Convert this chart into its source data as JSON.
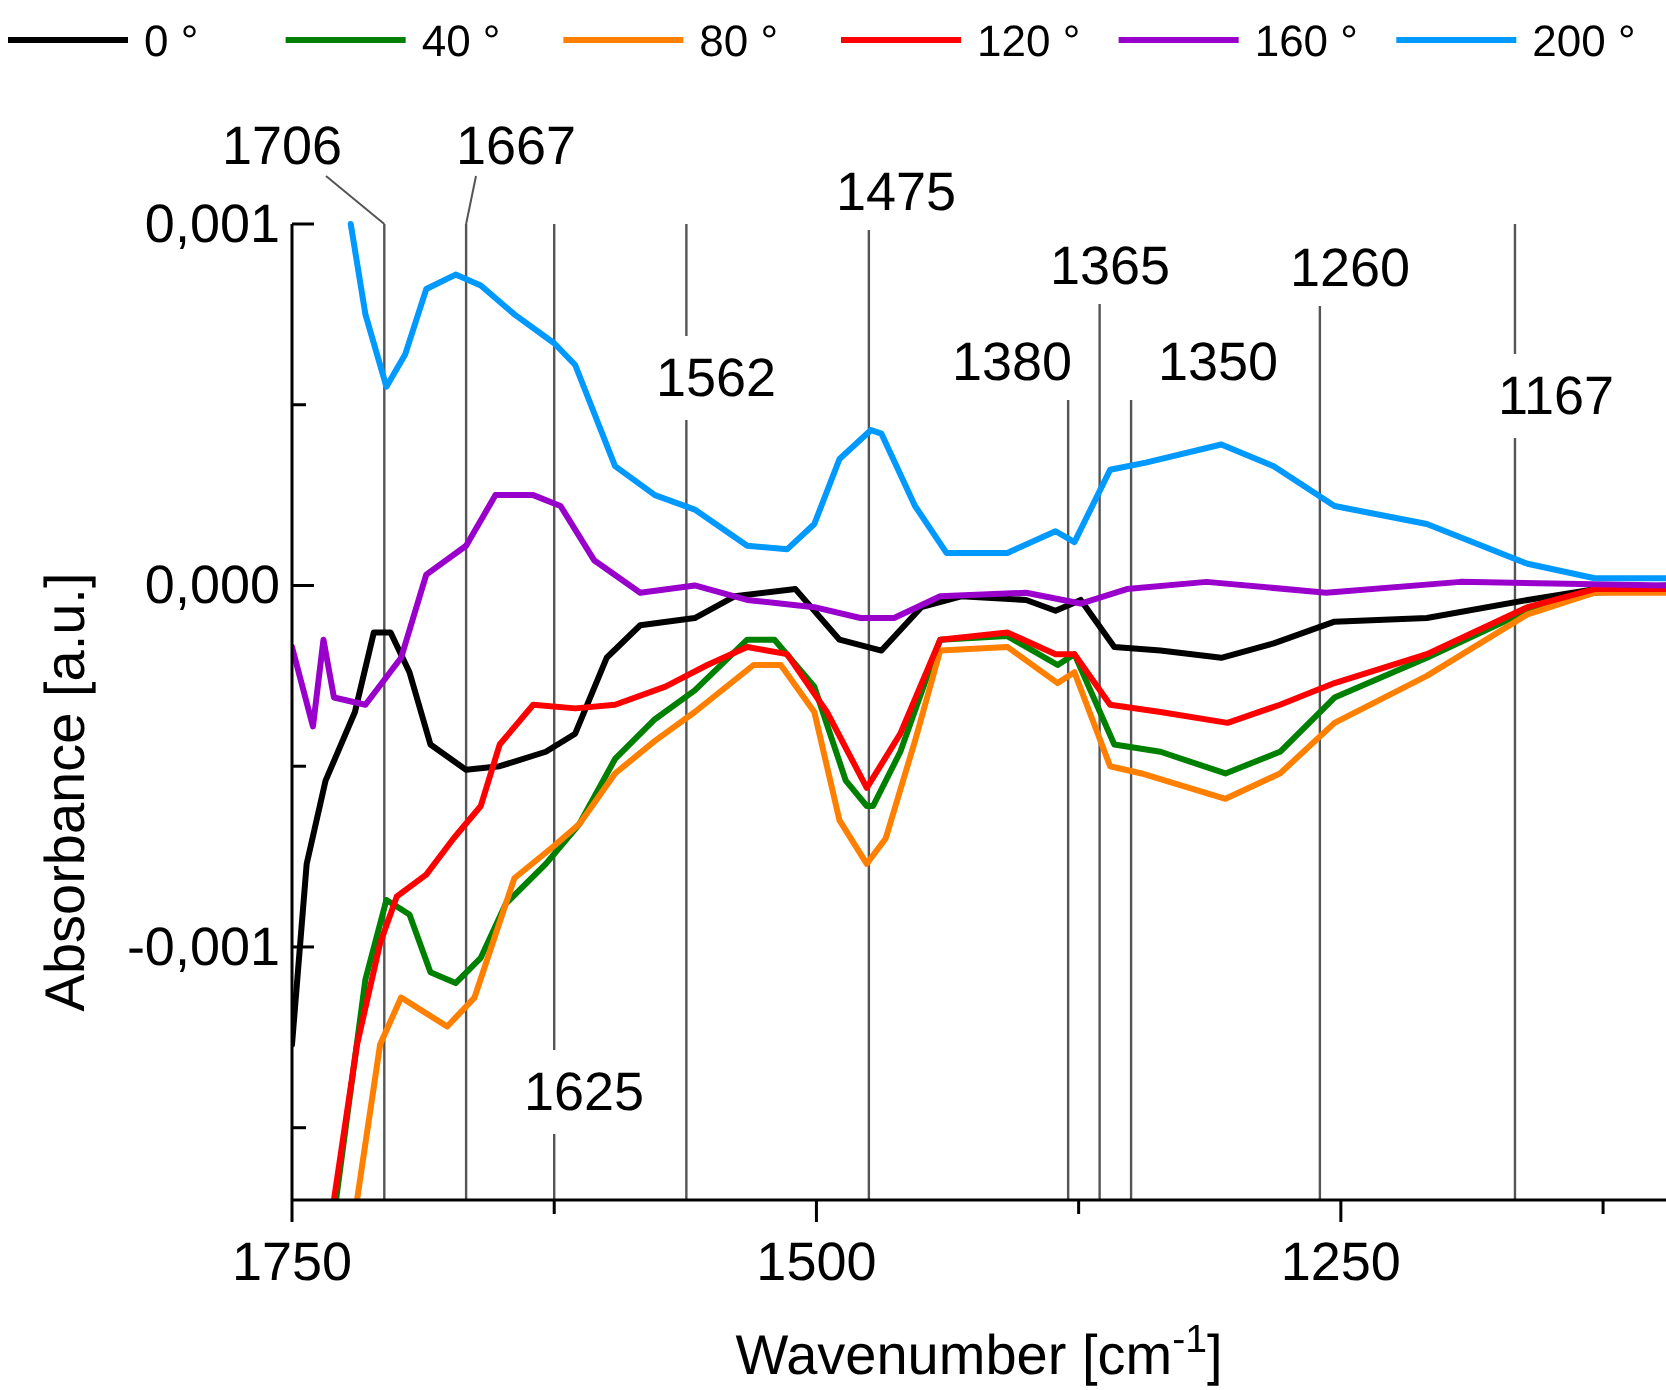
{
  "chart_data": {
    "type": "line",
    "xlabel": "Wavenumber [cm$^{-1}$]",
    "ylabel": "Absorbance [a.u.]",
    "xlim": [
      1750,
      1095
    ],
    "ylim": [
      -0.0017,
      0.001
    ],
    "xticks": [
      1750,
      {
        "value": 1625,
        "label": null
      },
      1500,
      {
        "value": 1375,
        "label": null
      },
      1250,
      {
        "value": 1125,
        "label": null
      }
    ],
    "yticks": [
      {
        "value": -0.0015,
        "label": null
      },
      {
        "value": -0.001,
        "label": "-0,001"
      },
      {
        "value": -0.0005,
        "label": null
      },
      {
        "value": 0,
        "label": "0,000"
      },
      {
        "value": 0.0005,
        "label": null
      },
      {
        "value": 0.001,
        "label": "0,001"
      }
    ],
    "legend": "top",
    "grid": false,
    "marker": "none",
    "line_style": "solid",
    "ref_lines": [
      {
        "axis": "x",
        "value": 1706,
        "label": "1706",
        "color": "#555555"
      },
      {
        "axis": "x",
        "value": 1667,
        "label": "1667",
        "color": "#555555"
      },
      {
        "axis": "x",
        "value": 1625,
        "label": "1625",
        "color": "#555555"
      },
      {
        "axis": "x",
        "value": 1562,
        "label": "1562",
        "color": "#555555"
      },
      {
        "axis": "x",
        "value": 1475,
        "label": "1475",
        "color": "#555555"
      },
      {
        "axis": "x",
        "value": 1380,
        "label": "1380",
        "color": "#555555"
      },
      {
        "axis": "x",
        "value": 1365,
        "label": "1365",
        "color": "#555555"
      },
      {
        "axis": "x",
        "value": 1350,
        "label": "1350",
        "color": "#555555"
      },
      {
        "axis": "x",
        "value": 1260,
        "label": "1260",
        "color": "#555555"
      },
      {
        "axis": "x",
        "value": 1167,
        "label": "1167",
        "color": "#555555"
      }
    ],
    "series": [
      {
        "name": "0 °",
        "color": "#000000",
        "x": [
          1750,
          1743,
          1734,
          1720,
          1711,
          1703,
          1694,
          1684,
          1667,
          1651,
          1629,
          1615,
          1600,
          1584,
          1558,
          1539,
          1510,
          1489,
          1469,
          1450,
          1431,
          1400,
          1386,
          1374,
          1358,
          1336,
          1307,
          1282,
          1253,
          1209,
          1161,
          1129,
          1095
        ],
        "values": [
          -0.00127,
          -0.00077,
          -0.00054,
          -0.00035,
          -0.00013,
          -0.00013,
          -0.00024,
          -0.00044,
          -0.00051,
          -0.0005,
          -0.00046,
          -0.00041,
          -0.0002,
          -0.00011,
          -9e-05,
          -3e-05,
          -1e-05,
          -0.00015,
          -0.00018,
          -6e-05,
          -3e-05,
          -4e-05,
          -7e-05,
          -4e-05,
          -0.00017,
          -0.00018,
          -0.0002,
          -0.00016,
          -0.0001,
          -9e-05,
          -4e-05,
          -1e-05,
          0
        ]
      },
      {
        "name": "40 °",
        "color": "#008000",
        "x": [
          1729,
          1715,
          1705,
          1694,
          1684,
          1672,
          1660,
          1648,
          1629,
          1613,
          1596,
          1577,
          1558,
          1533,
          1520,
          1501,
          1486,
          1476,
          1473,
          1460,
          1441,
          1409,
          1385,
          1377,
          1358,
          1336,
          1305,
          1279,
          1253,
          1209,
          1161,
          1129,
          1095
        ],
        "values": [
          -0.0017,
          -0.00109,
          -0.00087,
          -0.00091,
          -0.00107,
          -0.0011,
          -0.00103,
          -0.00088,
          -0.00077,
          -0.00066,
          -0.00048,
          -0.00037,
          -0.00029,
          -0.00015,
          -0.00015,
          -0.00028,
          -0.00054,
          -0.00061,
          -0.00061,
          -0.00046,
          -0.00015,
          -0.00014,
          -0.00022,
          -0.00019,
          -0.00044,
          -0.00046,
          -0.00052,
          -0.00046,
          -0.00031,
          -0.0002,
          -7e-05,
          -2e-05,
          -1e-05
        ]
      },
      {
        "name": "80 °",
        "color": "#ff8000",
        "x": [
          1719,
          1708,
          1698,
          1676,
          1663,
          1644,
          1625,
          1613,
          1596,
          1577,
          1558,
          1530,
          1517,
          1501,
          1489,
          1476,
          1467,
          1453,
          1441,
          1409,
          1385,
          1377,
          1360,
          1345,
          1305,
          1279,
          1253,
          1209,
          1161,
          1129,
          1095
        ],
        "values": [
          -0.0017,
          -0.00127,
          -0.00114,
          -0.00122,
          -0.00114,
          -0.00081,
          -0.00072,
          -0.00066,
          -0.00052,
          -0.00043,
          -0.00035,
          -0.00022,
          -0.00022,
          -0.00035,
          -0.00065,
          -0.00077,
          -0.0007,
          -0.00043,
          -0.00018,
          -0.00017,
          -0.00027,
          -0.00024,
          -0.0005,
          -0.00052,
          -0.00059,
          -0.00052,
          -0.00038,
          -0.00025,
          -8e-05,
          -2e-05,
          -2e-05
        ]
      },
      {
        "name": "120 °",
        "color": "#ff0000",
        "x": [
          1730,
          1719,
          1708,
          1700,
          1686,
          1673,
          1660,
          1651,
          1635,
          1615,
          1596,
          1572,
          1552,
          1533,
          1514,
          1495,
          1476,
          1460,
          1441,
          1409,
          1386,
          1377,
          1360,
          1336,
          1304,
          1279,
          1253,
          1209,
          1161,
          1129,
          1095
        ],
        "values": [
          -0.0017,
          -0.00127,
          -0.00099,
          -0.00086,
          -0.0008,
          -0.0007,
          -0.00061,
          -0.00044,
          -0.00033,
          -0.00034,
          -0.00033,
          -0.00028,
          -0.00022,
          -0.00017,
          -0.00019,
          -0.00035,
          -0.00056,
          -0.00041,
          -0.00015,
          -0.00013,
          -0.00019,
          -0.00019,
          -0.00033,
          -0.00035,
          -0.00038,
          -0.00033,
          -0.00027,
          -0.00019,
          -6e-05,
          -1e-05,
          -1e-05
        ]
      },
      {
        "name": "160 °",
        "color": "#9900cc",
        "x": [
          1750,
          1740,
          1735,
          1730,
          1715,
          1698,
          1686,
          1667,
          1653,
          1635,
          1622,
          1606,
          1584,
          1558,
          1533,
          1501,
          1479,
          1463,
          1441,
          1400,
          1374,
          1352,
          1314,
          1257,
          1193,
          1095
        ],
        "values": [
          -0.00017,
          -0.00039,
          -0.00015,
          -0.00031,
          -0.00033,
          -0.0002,
          3e-05,
          0.00011,
          0.00025,
          0.00025,
          0.00022,
          7e-05,
          -2e-05,
          0,
          -4e-05,
          -6e-05,
          -9e-05,
          -9e-05,
          -3e-05,
          -2e-05,
          -5e-05,
          -1e-05,
          1e-05,
          -2e-05,
          1e-05,
          0
        ]
      },
      {
        "name": "200 °",
        "color": "#0099ff",
        "x": [
          1722,
          1715,
          1705,
          1696,
          1686,
          1672,
          1660,
          1644,
          1625,
          1615,
          1596,
          1577,
          1558,
          1533,
          1514,
          1501,
          1489,
          1474,
          1469,
          1453,
          1438,
          1409,
          1386,
          1377,
          1360,
          1343,
          1307,
          1282,
          1253,
          1209,
          1161,
          1129,
          1095
        ],
        "values": [
          0.001,
          0.00075,
          0.00055,
          0.00064,
          0.00082,
          0.00086,
          0.00083,
          0.00075,
          0.00067,
          0.00061,
          0.00033,
          0.00025,
          0.00021,
          0.00011,
          0.0001,
          0.00017,
          0.00035,
          0.00043,
          0.00042,
          0.00022,
          9e-05,
          9e-05,
          0.00015,
          0.00012,
          0.00032,
          0.00034,
          0.00039,
          0.00033,
          0.00022,
          0.00017,
          6e-05,
          2e-05,
          2e-05
        ]
      }
    ]
  }
}
